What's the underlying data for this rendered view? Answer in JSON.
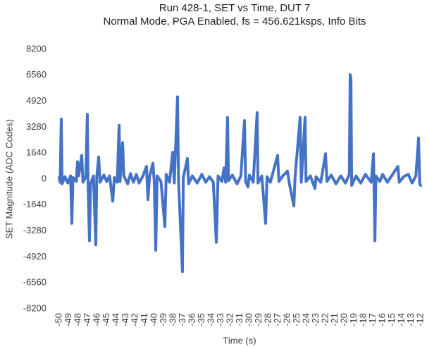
{
  "chart_data": {
    "type": "line",
    "title": "Run 428-1, SET vs Time, DUT 7",
    "subtitle": "Normal Mode, PGA Enabled, fs = 456.621ksps, Info Bits",
    "x_label": "Time (s)",
    "y_label": "SET Magnitude (ADC Codes)",
    "color": "#4472c4",
    "xlim": [
      -50,
      -12
    ],
    "xticks": [
      -50,
      -49,
      -48,
      -47,
      -46,
      -45,
      -44,
      -43,
      -42,
      -41,
      -40,
      -39,
      -38,
      -37,
      -36,
      -35,
      -34,
      -33,
      -32,
      -31,
      -30,
      -29,
      -28,
      -27,
      -26,
      -25,
      -24,
      -23,
      -22,
      -21,
      -20,
      -19,
      -18,
      -17,
      -16,
      -15,
      -14,
      -13,
      -12
    ],
    "ylim": [
      -8200,
      8200
    ],
    "yticks": [
      -8200,
      -6560,
      -4920,
      -3280,
      -1640,
      0,
      1640,
      3280,
      4920,
      6560,
      8200
    ],
    "x": [
      -50,
      -49.9,
      -49.78,
      -49.7,
      -49.4,
      -49.1,
      -48.8,
      -48.67,
      -48.55,
      -48.2,
      -48.07,
      -47.95,
      -47.63,
      -47.5,
      -47.2,
      -47.04,
      -46.97,
      -46.82,
      -46.7,
      -46.4,
      -46.15,
      -46.05,
      -45.85,
      -45.7,
      -45.3,
      -45.0,
      -44.7,
      -44.37,
      -44.2,
      -43.9,
      -43.7,
      -43.6,
      -43.33,
      -43.2,
      -42.8,
      -42.5,
      -42.2,
      -41.89,
      -41.6,
      -41.2,
      -40.82,
      -40.67,
      -40.5,
      -40.15,
      -40.0,
      -39.85,
      -39.7,
      -39.3,
      -38.89,
      -38.75,
      -38.4,
      -38.07,
      -37.9,
      -37.56,
      -37.45,
      -37.04,
      -36.95,
      -36.52,
      -36.4,
      -36.0,
      -35.5,
      -35.0,
      -34.6,
      -34.2,
      -33.8,
      -33.48,
      -33.3,
      -32.9,
      -32.67,
      -32.5,
      -32.3,
      -32.2,
      -31.8,
      -31.3,
      -30.9,
      -30.52,
      -30.4,
      -30.15,
      -30.0,
      -29.6,
      -29.19,
      -29.1,
      -28.7,
      -28.3,
      -28.15,
      -27.8,
      -27.04,
      -26.9,
      -26.5,
      -26.0,
      -25.8,
      -25.33,
      -25.2,
      -24.67,
      -24.55,
      -24.15,
      -24.05,
      -23.6,
      -23.11,
      -23.0,
      -22.5,
      -22.0,
      -21.85,
      -21.4,
      -20.9,
      -20.4,
      -19.9,
      -19.5,
      -19.41,
      -19.33,
      -19.25,
      -18.8,
      -18.3,
      -17.8,
      -17.2,
      -16.96,
      -16.81,
      -16.7,
      -16.3,
      -16.0,
      -15.5,
      -15.0,
      -14.4,
      -14.25,
      -13.8,
      -13.3,
      -12.9,
      -12.5,
      -12.22,
      -12.1,
      -12.0
    ],
    "values": [
      100,
      -200,
      3800,
      -300,
      150,
      -250,
      200,
      -2800,
      100,
      -150,
      1100,
      200,
      1500,
      -200,
      150,
      4100,
      -100,
      -3900,
      -300,
      200,
      -4150,
      150,
      1400,
      -200,
      250,
      -150,
      200,
      -1400,
      100,
      -200,
      3400,
      -150,
      2300,
      200,
      -300,
      350,
      -200,
      300,
      -250,
      200,
      800,
      -1300,
      150,
      1000,
      -200,
      -4500,
      200,
      -150,
      -3000,
      300,
      -200,
      1700,
      -250,
      5200,
      -200,
      -5850,
      100,
      1300,
      -300,
      200,
      -250,
      300,
      -200,
      150,
      -200,
      -4000,
      200,
      -150,
      700,
      -200,
      3900,
      -100,
      250,
      -300,
      200,
      3700,
      -150,
      -500,
      250,
      -200,
      4200,
      -250,
      200,
      -2800,
      150,
      -200,
      1500,
      -150,
      200,
      500,
      -300,
      -1700,
      150,
      3900,
      -200,
      3900,
      -150,
      200,
      -600,
      150,
      -200,
      1600,
      -150,
      250,
      -300,
      200,
      -250,
      300,
      6600,
      6300,
      -400,
      200,
      -250,
      300,
      -200,
      1600,
      -3900,
      200,
      -150,
      300,
      -200,
      250,
      800,
      -200,
      150,
      300,
      -250,
      200,
      2600,
      -300,
      -400
    ]
  }
}
